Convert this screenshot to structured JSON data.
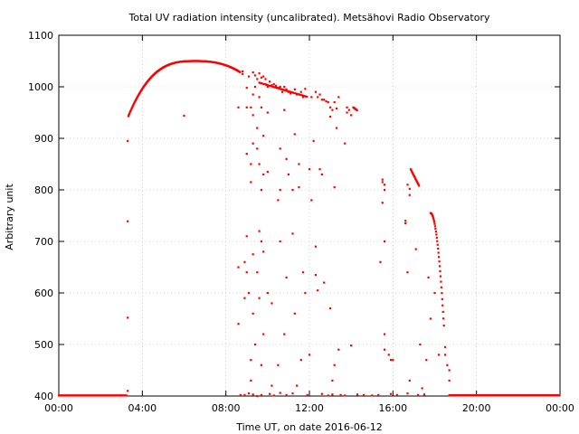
{
  "chart_data": {
    "type": "scatter",
    "title": "Total UV radiation intensity (uncalibrated). Metsähovi Radio Observatory",
    "xlabel": "Time UT, on date 2016-06-12",
    "ylabel": "Arbitrary unit",
    "xlim": [
      0,
      24
    ],
    "ylim": [
      400,
      1100
    ],
    "x_unit": "hours UT",
    "x_ticks": [
      {
        "value": 0,
        "label": "00:00"
      },
      {
        "value": 4,
        "label": "04:00"
      },
      {
        "value": 8,
        "label": "08:00"
      },
      {
        "value": 12,
        "label": "12:00"
      },
      {
        "value": 16,
        "label": "16:00"
      },
      {
        "value": 20,
        "label": "20:00"
      },
      {
        "value": 24,
        "label": "00:00"
      }
    ],
    "y_ticks": [
      {
        "value": 400,
        "label": "400"
      },
      {
        "value": 500,
        "label": "500"
      },
      {
        "value": 600,
        "label": "600"
      },
      {
        "value": 700,
        "label": "700"
      },
      {
        "value": 800,
        "label": "800"
      },
      {
        "value": 900,
        "label": "900"
      },
      {
        "value": 1000,
        "label": "1000"
      },
      {
        "value": 1100,
        "label": "1100"
      }
    ],
    "grid": true,
    "series_color": "#ff0000",
    "points": [
      [
        3.3,
        410
      ],
      [
        3.3,
        552
      ],
      [
        3.3,
        739
      ],
      [
        3.3,
        895
      ],
      [
        6.0,
        944
      ],
      [
        8.6,
        960
      ],
      [
        8.6,
        650
      ],
      [
        8.6,
        540
      ],
      [
        8.8,
        1025
      ],
      [
        8.8,
        1030
      ],
      [
        8.9,
        660
      ],
      [
        8.9,
        590
      ],
      [
        9.0,
        998
      ],
      [
        9.0,
        960
      ],
      [
        9.0,
        870
      ],
      [
        9.0,
        710
      ],
      [
        9.0,
        640
      ],
      [
        9.1,
        600
      ],
      [
        9.1,
        1020
      ],
      [
        9.2,
        850
      ],
      [
        9.2,
        815
      ],
      [
        9.2,
        960
      ],
      [
        9.2,
        470
      ],
      [
        9.2,
        430
      ],
      [
        9.3,
        1028
      ],
      [
        9.3,
        985
      ],
      [
        9.3,
        945
      ],
      [
        9.3,
        890
      ],
      [
        9.3,
        675
      ],
      [
        9.3,
        560
      ],
      [
        9.4,
        1022
      ],
      [
        9.4,
        1000
      ],
      [
        9.4,
        500
      ],
      [
        9.5,
        1015
      ],
      [
        9.5,
        920
      ],
      [
        9.5,
        880
      ],
      [
        9.5,
        640
      ],
      [
        9.5,
        400
      ],
      [
        9.6,
        1026
      ],
      [
        9.6,
        980
      ],
      [
        9.6,
        850
      ],
      [
        9.6,
        720
      ],
      [
        9.6,
        590
      ],
      [
        9.7,
        1018
      ],
      [
        9.7,
        960
      ],
      [
        9.7,
        800
      ],
      [
        9.7,
        700
      ],
      [
        9.7,
        460
      ],
      [
        9.8,
        1020
      ],
      [
        9.8,
        905
      ],
      [
        9.8,
        830
      ],
      [
        9.8,
        680
      ],
      [
        9.8,
        520
      ],
      [
        9.9,
        1015
      ],
      [
        9.9,
        1005
      ],
      [
        10.0,
        1000
      ],
      [
        10.0,
        950
      ],
      [
        10.0,
        835
      ],
      [
        10.0,
        600
      ],
      [
        10.1,
        1010
      ],
      [
        10.2,
        1003
      ],
      [
        10.2,
        580
      ],
      [
        10.2,
        420
      ],
      [
        10.3,
        1005
      ],
      [
        10.4,
        1002
      ],
      [
        10.5,
        998
      ],
      [
        10.5,
        780
      ],
      [
        10.5,
        460
      ],
      [
        10.6,
        1000
      ],
      [
        10.6,
        880
      ],
      [
        10.6,
        800
      ],
      [
        10.6,
        700
      ],
      [
        10.7,
        990
      ],
      [
        10.8,
        1000
      ],
      [
        10.8,
        955
      ],
      [
        10.8,
        520
      ],
      [
        10.9,
        995
      ],
      [
        10.9,
        860
      ],
      [
        10.9,
        630
      ],
      [
        11.0,
        990
      ],
      [
        11.0,
        830
      ],
      [
        11.1,
        987
      ],
      [
        11.2,
        800
      ],
      [
        11.2,
        715
      ],
      [
        11.3,
        995
      ],
      [
        11.3,
        908
      ],
      [
        11.3,
        560
      ],
      [
        11.4,
        985
      ],
      [
        11.4,
        420
      ],
      [
        11.5,
        850
      ],
      [
        11.5,
        805
      ],
      [
        11.6,
        990
      ],
      [
        11.6,
        470
      ],
      [
        11.7,
        980
      ],
      [
        11.7,
        640
      ],
      [
        11.8,
        996
      ],
      [
        11.8,
        600
      ],
      [
        12.0,
        840
      ],
      [
        12.0,
        480
      ],
      [
        12.1,
        980
      ],
      [
        12.1,
        780
      ],
      [
        12.2,
        895
      ],
      [
        12.3,
        990
      ],
      [
        12.3,
        690
      ],
      [
        12.3,
        635
      ],
      [
        12.4,
        980
      ],
      [
        12.4,
        605
      ],
      [
        12.5,
        985
      ],
      [
        12.5,
        840
      ],
      [
        12.6,
        975
      ],
      [
        12.6,
        830
      ],
      [
        12.7,
        975
      ],
      [
        12.7,
        620
      ],
      [
        12.8,
        972
      ],
      [
        12.9,
        970
      ],
      [
        13.0,
        960
      ],
      [
        13.0,
        942
      ],
      [
        13.0,
        570
      ],
      [
        13.1,
        955
      ],
      [
        13.1,
        430
      ],
      [
        13.2,
        970
      ],
      [
        13.2,
        805
      ],
      [
        13.2,
        460
      ],
      [
        13.3,
        958
      ],
      [
        13.3,
        920
      ],
      [
        13.4,
        980
      ],
      [
        13.4,
        490
      ],
      [
        13.7,
        890
      ],
      [
        13.8,
        960
      ],
      [
        13.8,
        950
      ],
      [
        13.9,
        955
      ],
      [
        14.0,
        945
      ],
      [
        14.0,
        498
      ],
      [
        15.4,
        660
      ],
      [
        15.5,
        820
      ],
      [
        15.5,
        815
      ],
      [
        15.5,
        775
      ],
      [
        15.6,
        810
      ],
      [
        15.6,
        800
      ],
      [
        15.6,
        700
      ],
      [
        15.6,
        490
      ],
      [
        15.6,
        520
      ],
      [
        15.8,
        480
      ],
      [
        15.9,
        470
      ],
      [
        16.0,
        470
      ],
      [
        16.6,
        735
      ],
      [
        16.6,
        740
      ],
      [
        16.7,
        810
      ],
      [
        16.7,
        640
      ],
      [
        16.8,
        802
      ],
      [
        16.8,
        790
      ],
      [
        16.8,
        430
      ],
      [
        17.1,
        685
      ],
      [
        17.3,
        500
      ],
      [
        17.4,
        415
      ],
      [
        17.6,
        470
      ],
      [
        17.7,
        630
      ],
      [
        17.8,
        550
      ],
      [
        18.0,
        600
      ],
      [
        18.2,
        480
      ],
      [
        18.5,
        480
      ],
      [
        18.5,
        495
      ],
      [
        18.6,
        460
      ],
      [
        18.7,
        450
      ],
      [
        18.7,
        430
      ],
      [
        8.7,
        402
      ],
      [
        8.9,
        402
      ],
      [
        9.1,
        405
      ],
      [
        9.3,
        403
      ],
      [
        9.7,
        402
      ],
      [
        10.1,
        404
      ],
      [
        10.3,
        401
      ],
      [
        10.6,
        406
      ],
      [
        10.9,
        402
      ],
      [
        11.2,
        405
      ],
      [
        11.9,
        402
      ],
      [
        12.6,
        404
      ],
      [
        12.9,
        401
      ],
      [
        13.1,
        403
      ],
      [
        13.5,
        402
      ],
      [
        13.7,
        401
      ],
      [
        14.3,
        403
      ],
      [
        14.6,
        402
      ],
      [
        15.0,
        401
      ],
      [
        15.3,
        402
      ],
      [
        15.9,
        404
      ],
      [
        16.2,
        402
      ],
      [
        16.7,
        405
      ],
      [
        17.2,
        402
      ],
      [
        17.5,
        403
      ]
    ]
  }
}
